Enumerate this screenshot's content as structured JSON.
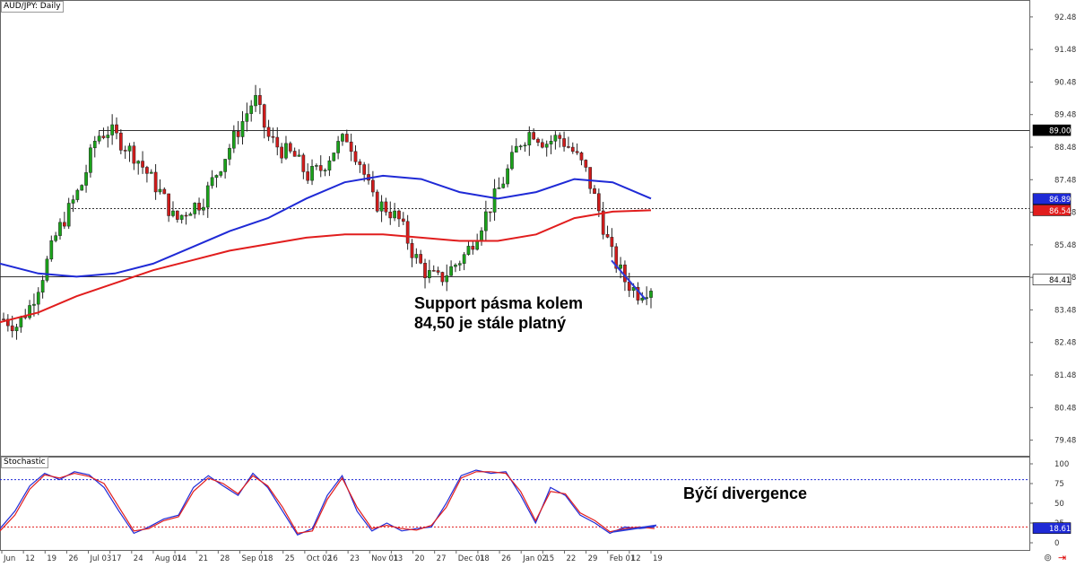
{
  "chart_data": [
    {
      "type": "candlestick",
      "title": "AUD/JPY: Daily",
      "ylim": [
        79.0,
        93.0
      ],
      "y_ticks": [
        "92.48",
        "91.48",
        "90.48",
        "89.48",
        "88.48",
        "87.48",
        "86.48",
        "85.48",
        "84.48",
        "83.48",
        "82.48",
        "81.48",
        "80.48",
        "79.48"
      ],
      "x_ticks": [
        "Jun",
        "12",
        "19",
        "26",
        "Jul 03",
        "17",
        "24",
        "Aug 01",
        "14",
        "21",
        "28",
        "Sep 01",
        "18",
        "25",
        "Oct 02",
        "16",
        "23",
        "Nov 01",
        "13",
        "20",
        "27",
        "Dec 01",
        "18",
        "26",
        "Jan 02",
        "15",
        "22",
        "29",
        "Feb 01",
        "12",
        "19"
      ],
      "close_path": [
        83.2,
        83.0,
        83.6,
        84.6,
        85.8,
        86.6,
        87.4,
        88.8,
        89.0,
        88.6,
        88.2,
        87.6,
        87.0,
        86.2,
        86.6,
        86.8,
        87.6,
        88.4,
        89.2,
        90.0,
        88.8,
        88.4,
        88.2,
        87.6,
        87.8,
        88.4,
        88.8,
        88.0,
        86.8,
        86.6,
        86.2,
        85.2,
        84.6,
        84.4,
        84.8,
        85.2,
        86.0,
        86.8,
        87.6,
        88.6,
        89.0,
        88.6,
        88.8,
        88.4,
        87.8,
        86.6,
        85.2,
        84.4,
        84.0,
        84.2
      ],
      "candles_count": 150,
      "moving_averages": [
        {
          "name": "",
          "color": "#1f2ad6",
          "values": [
            84.9,
            84.6,
            84.5,
            84.6,
            84.9,
            85.4,
            85.9,
            86.3,
            86.9,
            87.4,
            87.6,
            87.5,
            87.1,
            86.9,
            87.1,
            87.5,
            87.4,
            86.9
          ]
        },
        {
          "name": "",
          "color": "#e11d1d",
          "values": [
            83.1,
            83.4,
            83.9,
            84.3,
            84.7,
            85.0,
            85.3,
            85.5,
            85.7,
            85.8,
            85.8,
            85.7,
            85.6,
            85.6,
            85.8,
            86.3,
            86.5,
            86.54
          ]
        }
      ],
      "horizontal_levels": [
        {
          "value": 89.0,
          "style": "solid",
          "label": "89.00"
        },
        {
          "value": 86.6,
          "style": "dotted",
          "label": ""
        },
        {
          "value": 84.5,
          "style": "solid",
          "label": ""
        }
      ],
      "price_tags": [
        {
          "label": "89.00",
          "value": 89.0,
          "bg": "#000000",
          "fg": "#ffffff"
        },
        {
          "label": "86.89",
          "value": 86.89,
          "bg": "#1f2ad6",
          "fg": "#ffffff"
        },
        {
          "label": "86.54",
          "value": 86.54,
          "bg": "#e11d1d",
          "fg": "#ffffff"
        },
        {
          "label": "84.41",
          "value": 84.41,
          "bg": "#ffffff",
          "fg": "#000000"
        }
      ],
      "annotation": "Support pásma kolem\n84,50 je stále platný"
    },
    {
      "type": "line",
      "title": "Stochastic",
      "ylim": [
        0,
        100
      ],
      "y_ticks": [
        "100",
        "75",
        "50",
        "25",
        "0"
      ],
      "levels": [
        80,
        20
      ],
      "series": [
        {
          "name": "",
          "color": "#1f2ad6",
          "values": [
            18,
            40,
            72,
            88,
            80,
            90,
            86,
            70,
            40,
            12,
            20,
            30,
            35,
            70,
            85,
            72,
            60,
            88,
            70,
            40,
            10,
            18,
            60,
            85,
            40,
            15,
            25,
            15,
            18,
            20,
            50,
            85,
            92,
            88,
            90,
            60,
            25,
            70,
            60,
            35,
            25,
            12,
            20,
            18,
            20
          ]
        },
        {
          "name": "",
          "color": "#e11d1d",
          "values": [
            15,
            35,
            68,
            86,
            82,
            88,
            84,
            75,
            45,
            15,
            18,
            28,
            33,
            65,
            82,
            75,
            62,
            85,
            72,
            45,
            12,
            15,
            55,
            82,
            45,
            18,
            22,
            18,
            16,
            22,
            45,
            82,
            90,
            90,
            88,
            65,
            28,
            65,
            62,
            38,
            28,
            14,
            18,
            20,
            18
          ]
        }
      ],
      "price_tags": [
        {
          "label": "18.61",
          "value": 18.61,
          "bg": "#1f2ad6",
          "fg": "#ffffff"
        }
      ],
      "annotation": "Býčí divergence"
    }
  ],
  "icons": [
    "expand-icon",
    "arrow-right-icon"
  ]
}
